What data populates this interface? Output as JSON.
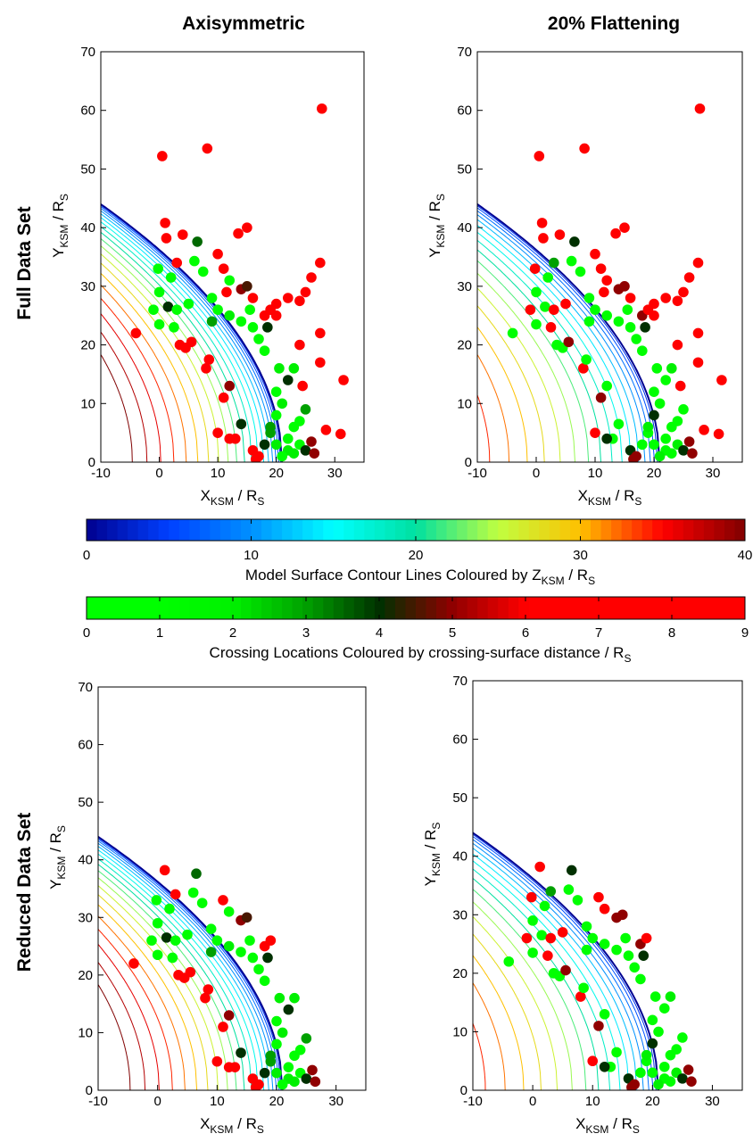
{
  "column_titles": [
    "Axisymmetric",
    "20% Flattening"
  ],
  "row_titles": [
    "Full Data Set",
    "Reduced Data Set"
  ],
  "chart_data": [
    {
      "type": "scatter",
      "x": [
        0.5,
        8.2,
        27.8,
        1,
        1.2,
        4,
        6.5,
        -0.2,
        2,
        3,
        6,
        7.5,
        10,
        11,
        13.5,
        15,
        12,
        14,
        15,
        15.5,
        16,
        18,
        18.5,
        19,
        20,
        22,
        24,
        25,
        27.5,
        26,
        27.5,
        27.5,
        24,
        31.5,
        28.5,
        31,
        -4,
        -1,
        1.5,
        3.5,
        4.5,
        5.5,
        8,
        8.5,
        11,
        12,
        14,
        13,
        16,
        17,
        16.5,
        18,
        19,
        20,
        20,
        20.5,
        21,
        22,
        22,
        21,
        23,
        24,
        25,
        26,
        24,
        25,
        22,
        23,
        18,
        17,
        16,
        14,
        12,
        10,
        9,
        5,
        2.5,
        0,
        0,
        3,
        9,
        19,
        20,
        23,
        26.5,
        24.5,
        12,
        10,
        20,
        11.5
      ],
      "y": [
        52.2,
        53.5,
        60.3,
        40.8,
        38.2,
        38.8,
        37.6,
        33,
        31.5,
        34,
        34.3,
        32.5,
        35.5,
        33,
        39,
        40,
        31,
        29.5,
        30,
        26,
        28,
        25,
        23,
        26,
        27,
        28,
        27.5,
        29,
        34,
        31.5,
        22,
        17,
        20,
        14,
        5.5,
        4.8,
        22,
        26,
        26.5,
        20,
        19.5,
        20.5,
        16,
        17.5,
        11,
        13,
        6.5,
        4,
        2,
        1,
        0.5,
        3,
        5,
        8,
        12,
        16,
        10,
        4,
        2,
        1,
        6,
        3,
        2,
        3.5,
        7,
        9,
        14,
        16,
        19,
        21,
        23,
        24,
        25,
        26,
        28,
        27,
        23,
        23.5,
        29,
        26,
        24,
        6,
        3,
        1.5,
        1.5,
        13,
        4,
        5,
        25,
        29
      ],
      "c": [
        9,
        9,
        9,
        9,
        9,
        9,
        3.5,
        1,
        1,
        8,
        1,
        1,
        9,
        9,
        9,
        9,
        1,
        5,
        4.5,
        1,
        9,
        6,
        4,
        8,
        9,
        9,
        9,
        9,
        9,
        9,
        9,
        9,
        9,
        9,
        9,
        9,
        9,
        1,
        4,
        9,
        9,
        6,
        9,
        9,
        7,
        5,
        4,
        8,
        9,
        6,
        9,
        4,
        3,
        1,
        1,
        2,
        2,
        1,
        2,
        1,
        1,
        1,
        4,
        5,
        1,
        3,
        4,
        2,
        1,
        1,
        1,
        1,
        2,
        1,
        1,
        1,
        1,
        1,
        1,
        1,
        3,
        3,
        2,
        2,
        5,
        9,
        9,
        9,
        9,
        9
      ],
      "xlim": [
        -10,
        35
      ],
      "ylim": [
        0,
        70
      ],
      "xticks": [
        -10,
        0,
        10,
        20,
        30
      ],
      "yticks": [
        0,
        10,
        20,
        30,
        40,
        50,
        60,
        70
      ],
      "xlabel": [
        "X",
        "KSM",
        " / R",
        "S"
      ],
      "ylabel": [
        "Y",
        "KSM",
        " / R",
        "S"
      ]
    },
    {
      "type": "scatter",
      "x": [
        0.5,
        8.2,
        27.8,
        1,
        1.2,
        4,
        6.5,
        -0.2,
        2,
        3,
        6,
        7.5,
        10,
        11,
        13.5,
        15,
        12,
        14,
        15,
        15.5,
        16,
        18,
        18.5,
        19,
        20,
        22,
        24,
        25,
        27.5,
        26,
        27.5,
        27.5,
        24,
        31.5,
        28.5,
        31,
        -4,
        -1,
        1.5,
        3.5,
        4.5,
        5.5,
        8,
        8.5,
        11,
        12,
        14,
        13,
        16,
        17,
        16.5,
        18,
        19,
        20,
        20,
        20.5,
        21,
        22,
        22,
        21,
        23,
        24,
        25,
        26,
        24,
        25,
        22,
        23,
        18,
        17,
        16,
        14,
        12,
        10,
        9,
        5,
        2.5,
        0,
        0,
        3,
        9,
        19,
        20,
        23,
        26.5,
        24.5,
        12,
        10,
        20,
        11.5
      ],
      "y": [
        52.2,
        53.5,
        60.3,
        40.8,
        38.2,
        38.8,
        37.6,
        33,
        31.5,
        34,
        34.3,
        32.5,
        35.5,
        33,
        39,
        40,
        31,
        29.5,
        30,
        26,
        28,
        25,
        23,
        26,
        27,
        28,
        27.5,
        29,
        34,
        31.5,
        22,
        17,
        20,
        14,
        5.5,
        4.8,
        22,
        26,
        26.5,
        20,
        19.5,
        20.5,
        16,
        17.5,
        11,
        13,
        6.5,
        4,
        2,
        1,
        0.5,
        3,
        5,
        8,
        12,
        16,
        10,
        4,
        2,
        1,
        6,
        3,
        2,
        3.5,
        7,
        9,
        14,
        16,
        19,
        21,
        23,
        24,
        25,
        26,
        28,
        27,
        23,
        23.5,
        29,
        26,
        24,
        6,
        3,
        1.5,
        1.5,
        13,
        4,
        5,
        25,
        29
      ],
      "c": [
        9,
        9,
        9,
        9,
        9,
        9,
        4,
        9,
        1,
        3,
        1,
        1,
        9,
        9,
        9,
        9,
        9,
        5,
        5,
        1,
        9,
        5,
        4,
        9,
        9,
        9,
        9,
        9,
        9,
        9,
        9,
        9,
        9,
        9,
        9,
        9,
        1,
        9,
        1,
        1,
        1,
        5,
        9,
        1,
        5,
        1,
        1,
        1,
        4,
        5,
        5,
        1,
        1,
        4,
        1,
        1,
        1,
        1,
        1,
        2,
        1,
        2,
        4,
        5,
        1,
        1,
        1,
        2,
        1,
        1,
        1,
        1,
        1,
        1,
        1,
        9,
        9,
        1,
        1,
        9,
        1,
        2,
        1,
        1,
        5,
        9,
        4,
        9,
        9,
        9
      ],
      "xlim": [
        -10,
        35
      ],
      "ylim": [
        0,
        70
      ],
      "xticks": [
        -10,
        0,
        10,
        20,
        30
      ],
      "yticks": [
        0,
        10,
        20,
        30,
        40,
        50,
        60,
        70
      ],
      "xlabel": [
        "X",
        "KSM",
        " / R",
        "S"
      ],
      "ylabel": [
        "Y",
        "KSM",
        " / R",
        "S"
      ]
    },
    {
      "type": "scatter",
      "x": [
        1.2,
        6.5,
        -0.2,
        2,
        3,
        6,
        7.5,
        11,
        12,
        14,
        15,
        15.5,
        18,
        18.5,
        19,
        -4,
        -1,
        1.5,
        3.5,
        4.5,
        5.5,
        8,
        8.5,
        11,
        12,
        14,
        13,
        16,
        17,
        16.5,
        18,
        19,
        20,
        20,
        20.5,
        21,
        22,
        22,
        21,
        23,
        24,
        25,
        26,
        24,
        25,
        22,
        23,
        18,
        17,
        16,
        14,
        12,
        10,
        9,
        5,
        2.5,
        0,
        0,
        3,
        9,
        19,
        20,
        23,
        26.5,
        12,
        10
      ],
      "y": [
        38.2,
        37.6,
        33,
        31.5,
        34,
        34.3,
        32.5,
        33,
        31,
        29.5,
        30,
        26,
        25,
        23,
        26,
        22,
        26,
        26.5,
        20,
        19.5,
        20.5,
        16,
        17.5,
        11,
        13,
        6.5,
        4,
        2,
        1,
        0.5,
        3,
        5,
        8,
        12,
        16,
        10,
        4,
        2,
        1,
        6,
        3,
        2,
        3.5,
        7,
        9,
        14,
        16,
        19,
        21,
        23,
        24,
        25,
        26,
        28,
        27,
        23,
        23.5,
        29,
        26,
        24,
        6,
        3,
        1.5,
        1.5,
        4,
        5
      ],
      "c": [
        9,
        3.5,
        1,
        1,
        8,
        1,
        1,
        9,
        1,
        5,
        4.5,
        1,
        6,
        4,
        8,
        9,
        1,
        4,
        9,
        9,
        6,
        9,
        9,
        7,
        5,
        4,
        8,
        9,
        6,
        9,
        4,
        3,
        1,
        1,
        2,
        2,
        1,
        2,
        1,
        1,
        1,
        4,
        5,
        1,
        3,
        4,
        2,
        1,
        1,
        1,
        1,
        2,
        1,
        1,
        1,
        1,
        1,
        1,
        1,
        3,
        3,
        2,
        2,
        5,
        9,
        9
      ],
      "xlim": [
        -10,
        35
      ],
      "ylim": [
        0,
        70
      ],
      "xticks": [
        -10,
        0,
        10,
        20,
        30
      ],
      "yticks": [
        0,
        10,
        20,
        30,
        40,
        50,
        60,
        70
      ],
      "xlabel": [
        "X",
        "KSM",
        " / R",
        "S"
      ],
      "ylabel": [
        "Y",
        "KSM",
        " / R",
        "S"
      ]
    },
    {
      "type": "scatter",
      "x": [
        1.2,
        6.5,
        -0.2,
        2,
        3,
        6,
        7.5,
        11,
        12,
        14,
        15,
        15.5,
        18,
        18.5,
        19,
        -4,
        -1,
        1.5,
        3.5,
        4.5,
        5.5,
        8,
        8.5,
        11,
        12,
        14,
        13,
        16,
        17,
        16.5,
        18,
        19,
        20,
        20,
        20.5,
        21,
        22,
        22,
        21,
        23,
        24,
        25,
        26,
        24,
        25,
        22,
        23,
        18,
        17,
        16,
        14,
        12,
        10,
        9,
        5,
        2.5,
        0,
        0,
        3,
        9,
        19,
        20,
        23,
        26.5,
        12,
        10
      ],
      "y": [
        38.2,
        37.6,
        33,
        31.5,
        34,
        34.3,
        32.5,
        33,
        31,
        29.5,
        30,
        26,
        25,
        23,
        26,
        22,
        26,
        26.5,
        20,
        19.5,
        20.5,
        16,
        17.5,
        11,
        13,
        6.5,
        4,
        2,
        1,
        0.5,
        3,
        5,
        8,
        12,
        16,
        10,
        4,
        2,
        1,
        6,
        3,
        2,
        3.5,
        7,
        9,
        14,
        16,
        19,
        21,
        23,
        24,
        25,
        26,
        28,
        27,
        23,
        23.5,
        29,
        26,
        24,
        6,
        3,
        1.5,
        1.5,
        4,
        5
      ],
      "c": [
        9,
        4,
        9,
        1,
        3,
        1,
        1,
        9,
        9,
        5,
        5,
        1,
        5,
        4,
        9,
        1,
        9,
        1,
        1,
        1,
        5,
        9,
        1,
        5,
        1,
        1,
        1,
        4,
        5,
        5,
        1,
        1,
        4,
        1,
        1,
        1,
        1,
        1,
        2,
        1,
        2,
        4,
        5,
        1,
        1,
        1,
        2,
        1,
        1,
        1,
        1,
        1,
        1,
        1,
        9,
        9,
        1,
        1,
        9,
        1,
        2,
        1,
        1,
        5,
        4,
        9
      ],
      "xlim": [
        -10,
        35
      ],
      "ylim": [
        0,
        70
      ],
      "xticks": [
        -10,
        0,
        10,
        20,
        30
      ],
      "yticks": [
        0,
        10,
        20,
        30,
        40,
        50,
        60,
        70
      ],
      "xlabel": [
        "X",
        "KSM",
        " / R",
        "S"
      ],
      "ylabel": [
        "Y",
        "KSM",
        " / R",
        "S"
      ]
    },
    {
      "type": "colorbar",
      "lim": [
        0,
        40
      ],
      "ticks": [
        0,
        10,
        20,
        30,
        40
      ],
      "colors": [
        "#00008f",
        "#0040ff",
        "#0090ff",
        "#00ffff",
        "#00e0a0",
        "#c0ff40",
        "#ffc000",
        "#ff0000",
        "#800000"
      ],
      "label": [
        "Model Surface Contour Lines Coloured by Z",
        "KSM",
        " / R",
        "S"
      ]
    },
    {
      "type": "colorbar",
      "lim": [
        0,
        9
      ],
      "ticks": [
        0,
        1,
        2,
        3,
        4,
        5,
        6,
        7,
        8,
        9
      ],
      "colors": [
        "#00ff00",
        "#00ff00",
        "#00f000",
        "#00a000",
        "#003000",
        "#900000",
        "#ff0000",
        "#ff0000",
        "#ff0000",
        "#ff0000"
      ],
      "label": [
        "Crossing Locations Coloured by crossing-surface distance / R",
        "S"
      ]
    }
  ]
}
